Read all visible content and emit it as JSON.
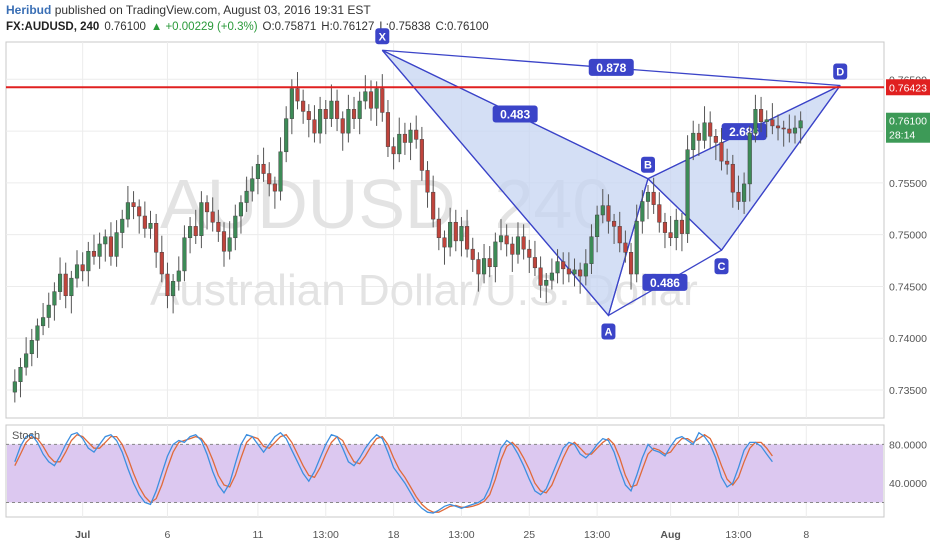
{
  "header": {
    "user": "Heribud",
    "published_text": "published on TradingView.com, August 03, 2016 19:31 EST",
    "symbol": "FX:AUDUSD, 240",
    "last": "0.76100",
    "change": "▲ +0.00229 (+0.3%)",
    "open": "O:0.75871",
    "high": "H:0.76127",
    "low": "L:0.75838",
    "close": "C:0.76100"
  },
  "chart_data": {
    "type": "candlestick",
    "watermark": {
      "symbol": "AUDUSD, 240",
      "name": "Australian Dollar/U.S. Dollar"
    },
    "y_ticks": [
      "0.76500",
      "0.76000",
      "0.75500",
      "0.75000",
      "0.74500",
      "0.74000",
      "0.73500"
    ],
    "y_tick_values": [
      0.765,
      0.76,
      0.755,
      0.75,
      0.745,
      0.74,
      0.735
    ],
    "ylim": [
      0.7323,
      0.7686
    ],
    "x_ticks": [
      "Jul",
      "6",
      "11",
      "13:00",
      "18",
      "13:00",
      "25",
      "13:00",
      "Aug",
      "13:00",
      "8"
    ],
    "x_tick_bars": [
      12,
      27,
      43,
      55,
      67,
      79,
      91,
      103,
      116,
      128,
      140
    ],
    "resistance_line": {
      "value": 0.76423,
      "label": "0.76423",
      "color": "#e02020"
    },
    "last_price": {
      "value": 0.761,
      "label": "0.76100",
      "countdown": "28:14",
      "color": "#3d9a57"
    },
    "candle_colors": {
      "up": "#3d8b57",
      "down": "#c0443c"
    },
    "closes": [
      0.7358,
      0.7372,
      0.7385,
      0.7398,
      0.7412,
      0.742,
      0.7432,
      0.7445,
      0.7462,
      0.7441,
      0.7458,
      0.7471,
      0.7465,
      0.7484,
      0.7479,
      0.7491,
      0.7498,
      0.7479,
      0.7502,
      0.7515,
      0.7531,
      0.7527,
      0.7518,
      0.7506,
      0.7511,
      0.7483,
      0.7462,
      0.7441,
      0.7455,
      0.7465,
      0.7497,
      0.7508,
      0.7499,
      0.7531,
      0.7522,
      0.7512,
      0.7503,
      0.7484,
      0.7497,
      0.7518,
      0.7531,
      0.7542,
      0.7554,
      0.7568,
      0.7559,
      0.7549,
      0.7542,
      0.758,
      0.7612,
      0.7641,
      0.7629,
      0.7619,
      0.7611,
      0.7598,
      0.7621,
      0.7612,
      0.7629,
      0.7612,
      0.7598,
      0.7621,
      0.7612,
      0.7629,
      0.7638,
      0.7622,
      0.7641,
      0.7618,
      0.7585,
      0.7578,
      0.7597,
      0.7589,
      0.7601,
      0.7592,
      0.7562,
      0.7541,
      0.7515,
      0.7497,
      0.7488,
      0.7512,
      0.7494,
      0.7508,
      0.7486,
      0.7476,
      0.7462,
      0.7477,
      0.7469,
      0.7493,
      0.7499,
      0.7491,
      0.7481,
      0.7498,
      0.7486,
      0.7478,
      0.7468,
      0.7451,
      0.7456,
      0.7463,
      0.7474,
      0.7467,
      0.7462,
      0.7466,
      0.746,
      0.7472,
      0.7498,
      0.7519,
      0.7528,
      0.7513,
      0.7508,
      0.7492,
      0.7483,
      0.7462,
      0.7513,
      0.7532,
      0.7541,
      0.7529,
      0.7512,
      0.7502,
      0.7497,
      0.7514,
      0.7501,
      0.7582,
      0.7598,
      0.7591,
      0.7608,
      0.7595,
      0.7589,
      0.7571,
      0.7568,
      0.7541,
      0.7532,
      0.7549,
      0.7598,
      0.7621,
      0.7609,
      0.7611,
      0.7605,
      0.7603,
      0.7602,
      0.7598,
      0.7603,
      0.761
    ],
    "pattern": {
      "type": "harmonic XABCD",
      "color": "#3b44c8",
      "fill": "#c6d4f2",
      "points": [
        {
          "label": "X",
          "bar": 65,
          "value": 0.7678
        },
        {
          "label": "A",
          "bar": 105,
          "value": 0.7422
        },
        {
          "label": "B",
          "bar": 112,
          "value": 0.7554
        },
        {
          "label": "C",
          "bar": 125,
          "value": 0.7485
        },
        {
          "label": "D",
          "bar": 146,
          "value": 0.7644
        }
      ],
      "ratios": [
        {
          "label": "0.878",
          "from": "X",
          "to": "D"
        },
        {
          "label": "0.483",
          "from": "X",
          "to": "B"
        },
        {
          "label": "0.486",
          "from": "A",
          "to": "C"
        },
        {
          "label": "2.686",
          "from": "B",
          "to": "D"
        }
      ]
    },
    "stochastic": {
      "label": "Stoch",
      "y_ticks": [
        "80.0000",
        "40.0000"
      ],
      "y_tick_values": [
        80,
        40
      ],
      "ylim": [
        5,
        100
      ],
      "band": [
        80,
        20
      ],
      "k_color": "#3d8fe0",
      "d_color": "#e06a3a",
      "band_fill": "#dcc8f0",
      "k": [
        62,
        78,
        88,
        90,
        82,
        70,
        62,
        58,
        68,
        80,
        90,
        92,
        86,
        76,
        72,
        80,
        88,
        90,
        84,
        72,
        55,
        40,
        28,
        20,
        18,
        32,
        50,
        68,
        80,
        84,
        82,
        88,
        90,
        84,
        70,
        52,
        38,
        30,
        40,
        60,
        80,
        90,
        88,
        80,
        72,
        80,
        88,
        92,
        86,
        74,
        62,
        50,
        42,
        52,
        66,
        80,
        90,
        88,
        76,
        62,
        58,
        66,
        76,
        84,
        90,
        86,
        72,
        56,
        48,
        40,
        30,
        20,
        14,
        10,
        9,
        12,
        16,
        18,
        16,
        14,
        16,
        18,
        20,
        24,
        36,
        56,
        76,
        84,
        80,
        70,
        58,
        44,
        32,
        28,
        34,
        48,
        62,
        76,
        82,
        80,
        70,
        66,
        72,
        80,
        86,
        84,
        72,
        54,
        38,
        32,
        48,
        66,
        80,
        74,
        72,
        68,
        78,
        86,
        88,
        84,
        80,
        92,
        88,
        80,
        66,
        46,
        36,
        40,
        56,
        74,
        82,
        82,
        78,
        70,
        62
      ],
      "d": [
        58,
        70,
        82,
        88,
        86,
        78,
        68,
        62,
        62,
        72,
        84,
        90,
        88,
        82,
        76,
        76,
        82,
        88,
        88,
        80,
        66,
        50,
        36,
        26,
        20,
        24,
        38,
        56,
        72,
        82,
        84,
        86,
        88,
        86,
        78,
        64,
        48,
        38,
        36,
        48,
        66,
        82,
        88,
        86,
        78,
        76,
        82,
        88,
        90,
        82,
        70,
        58,
        48,
        46,
        56,
        70,
        82,
        88,
        84,
        72,
        62,
        60,
        68,
        78,
        86,
        88,
        80,
        66,
        54,
        46,
        36,
        26,
        18,
        13,
        10,
        10,
        13,
        16,
        17,
        15,
        15,
        16,
        18,
        21,
        28,
        44,
        64,
        78,
        82,
        76,
        66,
        54,
        40,
        32,
        30,
        38,
        52,
        66,
        78,
        82,
        76,
        70,
        70,
        76,
        82,
        86,
        80,
        66,
        48,
        36,
        38,
        54,
        70,
        76,
        74,
        70,
        72,
        80,
        86,
        86,
        82,
        86,
        90,
        86,
        74,
        58,
        44,
        38,
        46,
        62,
        76,
        82,
        82,
        76,
        68
      ]
    }
  }
}
